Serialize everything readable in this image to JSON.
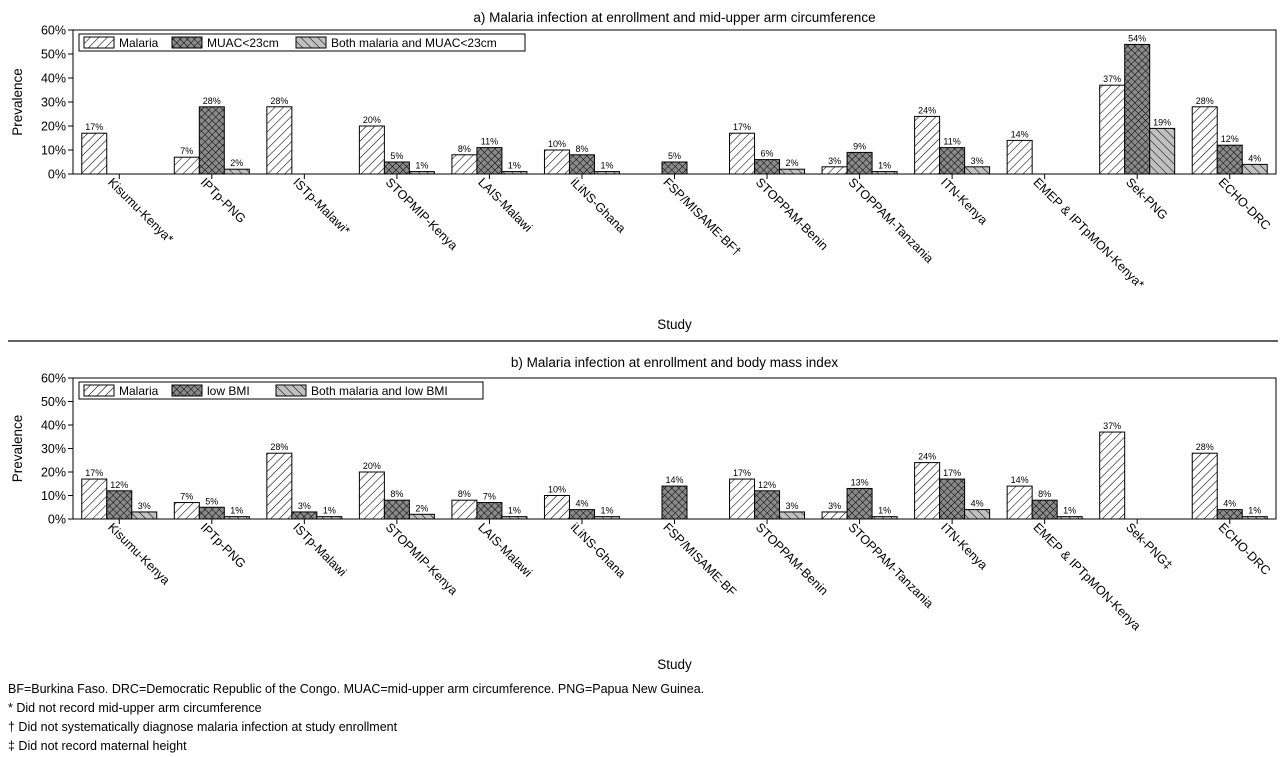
{
  "chart_data": [
    {
      "type": "bar",
      "title": "a) Malaria infection at enrollment and mid-upper arm circumference",
      "xlabel": "Study",
      "ylabel": "Prevalence",
      "ylim": [
        0,
        60
      ],
      "yticks": [
        "0%",
        "10%",
        "20%",
        "30%",
        "40%",
        "50%",
        "60%"
      ],
      "grid": false,
      "legend_position": "top-left",
      "categories": [
        "Kisumu-Kenya*",
        "IPTp-PNG",
        "ISTp-Malawi*",
        "STOPMIP-Kenya",
        "LAIS-Malawi",
        "iLiNS-Ghana",
        "FSP/MISAME-BF†",
        "STOPPAM-Benin",
        "STOPPAM-Tanzania",
        "ITN-Kenya",
        "EMEP & IPTpMON-Kenya*",
        "Sek-PNG",
        "ECHO-DRC"
      ],
      "series": [
        {
          "name": "Malaria",
          "pattern": "backslash",
          "values": [
            17,
            7,
            28,
            20,
            8,
            10,
            null,
            17,
            3,
            24,
            14,
            37,
            28
          ]
        },
        {
          "name": "MUAC<23cm",
          "pattern": "crosshatch",
          "values": [
            null,
            28,
            null,
            5,
            11,
            8,
            5,
            6,
            9,
            11,
            null,
            54,
            12
          ]
        },
        {
          "name": "Both malaria and MUAC<23cm",
          "pattern": "slash",
          "values": [
            null,
            2,
            null,
            1,
            1,
            1,
            null,
            2,
            1,
            3,
            null,
            19,
            4
          ]
        }
      ]
    },
    {
      "type": "bar",
      "title": "b) Malaria infection at enrollment and body mass index",
      "xlabel": "Study",
      "ylabel": "Prevalence",
      "ylim": [
        0,
        60
      ],
      "yticks": [
        "0%",
        "10%",
        "20%",
        "30%",
        "40%",
        "50%",
        "60%"
      ],
      "grid": false,
      "legend_position": "top-left",
      "categories": [
        "Kisumu-Kenya",
        "IPTp-PNG",
        "ISTp-Malawi",
        "STOPMIP-Kenya",
        "LAIS-Malawi",
        "iLiNS-Ghana",
        "FSP/MISAME-BF",
        "STOPPAM-Benin",
        "STOPPAM-Tanzania",
        "ITN-Kenya",
        "EMEP & IPTpMON-Kenya",
        "Sek-PNG‡",
        "ECHO-DRC"
      ],
      "series": [
        {
          "name": "Malaria",
          "pattern": "backslash",
          "values": [
            17,
            7,
            28,
            20,
            8,
            10,
            null,
            17,
            3,
            24,
            14,
            37,
            28
          ]
        },
        {
          "name": "low BMI",
          "pattern": "crosshatch",
          "values": [
            12,
            5,
            3,
            8,
            7,
            4,
            14,
            12,
            13,
            17,
            8,
            null,
            4
          ]
        },
        {
          "name": "Both malaria and low BMI",
          "pattern": "slash",
          "values": [
            3,
            1,
            1,
            2,
            1,
            1,
            null,
            3,
            1,
            4,
            1,
            null,
            1
          ]
        }
      ]
    }
  ],
  "footnotes": [
    "BF=Burkina Faso. DRC=Democratic Republic of the Congo. MUAC=mid-upper arm circumference. PNG=Papua New Guinea.",
    "* Did not record mid-upper arm circumference",
    "† Did not systematically diagnose malaria infection at study enrollment",
    "‡ Did not record maternal height"
  ],
  "colors": {
    "background": "#ffffff",
    "ink": "#000000",
    "bar_fill": "#ffffff",
    "crosshatch_fill": "#8a8a8a",
    "slash_fill": "#c0c0c0"
  },
  "value_suffix": "%"
}
